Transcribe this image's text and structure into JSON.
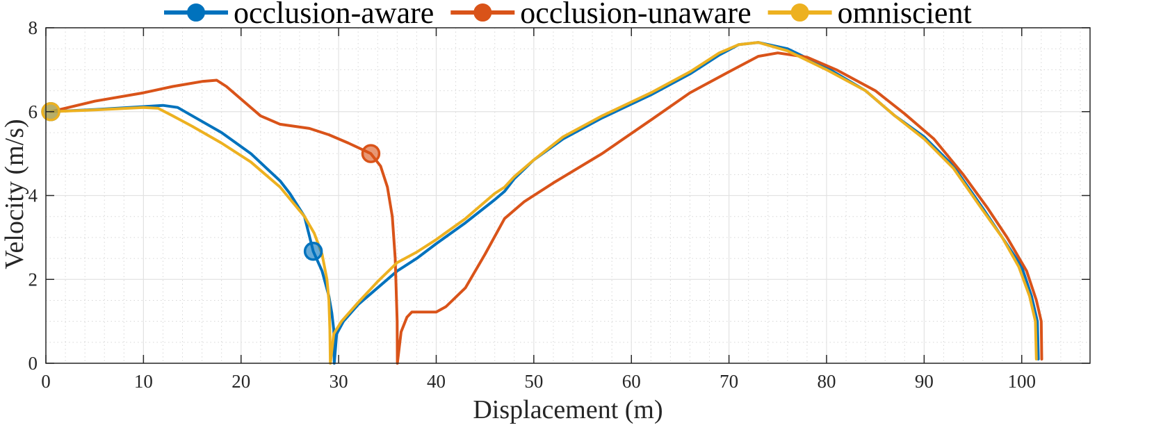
{
  "chart_data": {
    "type": "line",
    "title": "",
    "xlabel": "Displacement (m)",
    "ylabel": "Velocity (m/s)",
    "xlim": [
      0,
      107
    ],
    "ylim": [
      0,
      8
    ],
    "xticks": [
      0,
      10,
      20,
      30,
      40,
      50,
      60,
      70,
      80,
      90,
      100
    ],
    "yticks": [
      0,
      2,
      4,
      6,
      8
    ],
    "grid": true,
    "minor_grid": true,
    "legend_position": "top",
    "series": [
      {
        "name": "occlusion-aware",
        "color": "#0072BD",
        "points": [
          [
            0.5,
            6.0
          ],
          [
            5,
            6.05
          ],
          [
            10,
            6.12
          ],
          [
            12,
            6.15
          ],
          [
            13.5,
            6.1
          ],
          [
            15,
            5.9
          ],
          [
            18,
            5.5
          ],
          [
            21,
            5.0
          ],
          [
            24,
            4.35
          ],
          [
            25,
            4.05
          ],
          [
            26.5,
            3.5
          ],
          [
            27.4,
            2.67
          ],
          [
            28.3,
            2.2
          ],
          [
            29,
            1.6
          ],
          [
            29.3,
            1.2
          ],
          [
            29.5,
            0.8
          ],
          [
            29.55,
            0.0
          ],
          [
            29.8,
            0.7
          ],
          [
            30.5,
            1.0
          ],
          [
            32,
            1.4
          ],
          [
            34,
            1.8
          ],
          [
            36,
            2.2
          ],
          [
            38,
            2.5
          ],
          [
            40,
            2.85
          ],
          [
            43,
            3.35
          ],
          [
            46,
            3.9
          ],
          [
            47,
            4.1
          ],
          [
            48,
            4.4
          ],
          [
            50,
            4.85
          ],
          [
            53,
            5.35
          ],
          [
            57,
            5.85
          ],
          [
            62,
            6.4
          ],
          [
            66,
            6.9
          ],
          [
            69,
            7.35
          ],
          [
            71,
            7.6
          ],
          [
            73,
            7.65
          ],
          [
            76,
            7.5
          ],
          [
            80,
            7.05
          ],
          [
            84,
            6.5
          ],
          [
            87,
            5.9
          ],
          [
            90,
            5.4
          ],
          [
            93,
            4.7
          ],
          [
            96,
            3.7
          ],
          [
            98,
            3.0
          ],
          [
            100,
            2.3
          ],
          [
            101,
            1.6
          ],
          [
            101.6,
            1.0
          ],
          [
            101.7,
            0.1
          ]
        ]
      },
      {
        "name": "occlusion-unaware",
        "color": "#D95319",
        "points": [
          [
            0.5,
            6.0
          ],
          [
            5,
            6.25
          ],
          [
            10,
            6.45
          ],
          [
            13,
            6.6
          ],
          [
            16,
            6.72
          ],
          [
            17.5,
            6.75
          ],
          [
            18.5,
            6.6
          ],
          [
            20,
            6.3
          ],
          [
            22,
            5.9
          ],
          [
            24,
            5.7
          ],
          [
            27,
            5.6
          ],
          [
            29,
            5.45
          ],
          [
            31,
            5.25
          ],
          [
            33.3,
            5.0
          ],
          [
            34.3,
            4.7
          ],
          [
            35,
            4.2
          ],
          [
            35.5,
            3.5
          ],
          [
            35.8,
            2.5
          ],
          [
            36,
            1.0
          ],
          [
            36.02,
            0.0
          ],
          [
            36.4,
            0.75
          ],
          [
            37,
            1.1
          ],
          [
            37.5,
            1.22
          ],
          [
            40,
            1.22
          ],
          [
            41,
            1.35
          ],
          [
            43,
            1.8
          ],
          [
            45,
            2.6
          ],
          [
            47,
            3.45
          ],
          [
            49,
            3.85
          ],
          [
            52,
            4.3
          ],
          [
            57,
            5.0
          ],
          [
            62,
            5.8
          ],
          [
            66,
            6.45
          ],
          [
            70,
            6.95
          ],
          [
            73,
            7.32
          ],
          [
            75,
            7.4
          ],
          [
            78,
            7.3
          ],
          [
            81,
            7.0
          ],
          [
            85,
            6.5
          ],
          [
            88,
            5.95
          ],
          [
            91,
            5.35
          ],
          [
            94,
            4.5
          ],
          [
            96.5,
            3.7
          ],
          [
            98.5,
            3.0
          ],
          [
            100.5,
            2.2
          ],
          [
            101.5,
            1.5
          ],
          [
            102,
            1.0
          ],
          [
            102.05,
            0.1
          ]
        ]
      },
      {
        "name": "omniscient",
        "color": "#EDB120",
        "points": [
          [
            0.5,
            6.0
          ],
          [
            5,
            6.04
          ],
          [
            10,
            6.1
          ],
          [
            11.5,
            6.08
          ],
          [
            13,
            5.9
          ],
          [
            15,
            5.65
          ],
          [
            18,
            5.25
          ],
          [
            21,
            4.8
          ],
          [
            24,
            4.2
          ],
          [
            26.5,
            3.5
          ],
          [
            27.5,
            3.1
          ],
          [
            28.3,
            2.6
          ],
          [
            28.8,
            2.0
          ],
          [
            29,
            1.5
          ],
          [
            29.1,
            0.8
          ],
          [
            29.15,
            0.0
          ],
          [
            29.5,
            0.7
          ],
          [
            30.3,
            1.0
          ],
          [
            32,
            1.45
          ],
          [
            34,
            1.95
          ],
          [
            36,
            2.4
          ],
          [
            38,
            2.65
          ],
          [
            40,
            2.95
          ],
          [
            43,
            3.45
          ],
          [
            46,
            4.05
          ],
          [
            47,
            4.2
          ],
          [
            48,
            4.45
          ],
          [
            50,
            4.85
          ],
          [
            53,
            5.4
          ],
          [
            57,
            5.9
          ],
          [
            62,
            6.45
          ],
          [
            66,
            6.95
          ],
          [
            69,
            7.4
          ],
          [
            71,
            7.6
          ],
          [
            73,
            7.65
          ],
          [
            76,
            7.45
          ],
          [
            80,
            7.0
          ],
          [
            84,
            6.5
          ],
          [
            87,
            5.9
          ],
          [
            90,
            5.35
          ],
          [
            93,
            4.65
          ],
          [
            96,
            3.65
          ],
          [
            98,
            3.0
          ],
          [
            99.7,
            2.3
          ],
          [
            100.8,
            1.6
          ],
          [
            101.4,
            1.0
          ],
          [
            101.5,
            0.1
          ]
        ]
      }
    ],
    "markers": [
      {
        "series": "occlusion-aware",
        "x": 0.5,
        "y": 6.0
      },
      {
        "series": "occlusion-aware",
        "x": 27.4,
        "y": 2.67
      },
      {
        "series": "occlusion-unaware",
        "x": 33.3,
        "y": 5.0
      },
      {
        "series": "omniscient",
        "x": 0.5,
        "y": 6.0
      }
    ]
  }
}
